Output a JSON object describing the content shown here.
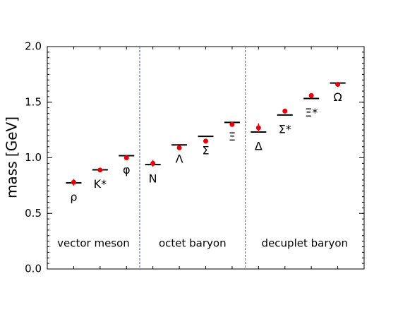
{
  "chart_data": {
    "type": "dot-compare",
    "y_label": "mass [GeV]",
    "categories": [
      "ρ",
      "K*",
      "φ",
      "N",
      "Λ",
      "Σ",
      "Ξ",
      "Δ",
      "Σ*",
      "Ξ*",
      "Ω"
    ],
    "groups": [
      "vector meson",
      "octet baryon",
      "decuplet baryon"
    ],
    "series": [
      {
        "color": "#000000",
        "values": [
          0.775,
          0.892,
          1.019,
          0.939,
          1.116,
          1.193,
          1.318,
          1.232,
          1.385,
          1.533,
          1.672
        ]
      },
      {
        "color": "#e8000b",
        "values": [
          0.78,
          0.89,
          1.0,
          0.95,
          1.09,
          1.15,
          1.3,
          1.27,
          1.42,
          1.56,
          1.66
        ],
        "errors": [
          0.03,
          0.01,
          0.01,
          0.03,
          0.02,
          0.02,
          0.01,
          0.04,
          0.02,
          0.02,
          0.01
        ]
      }
    ],
    "ylim": [
      0,
      2
    ],
    "yticks": [
      {
        "value": 0,
        "label": "0.0"
      },
      0.5,
      {
        "value": 1,
        "label": "1.0"
      },
      1.5,
      {
        "value": 2,
        "label": "2.0"
      }
    ]
  }
}
